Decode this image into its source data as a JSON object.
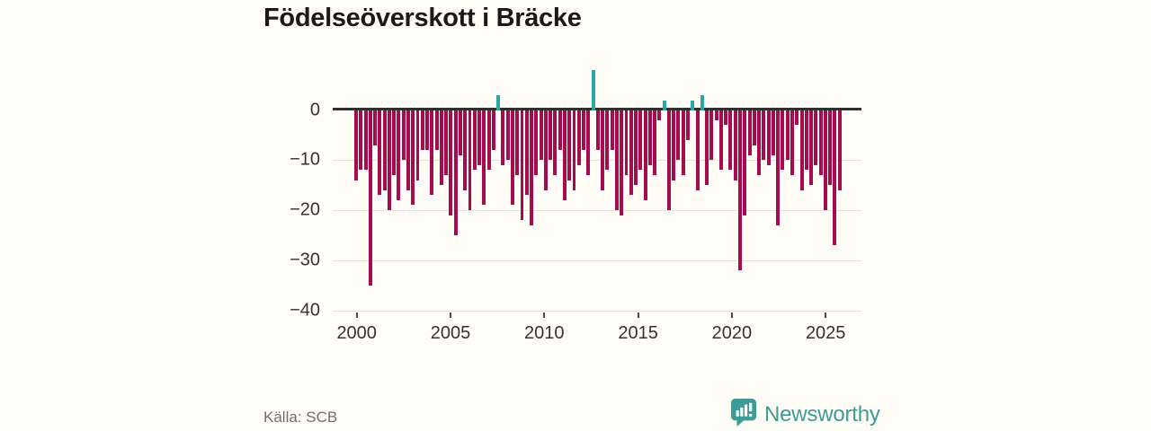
{
  "title": "Födelseöverskott i Bräcke",
  "source_label": "Källa: SCB",
  "brand": {
    "name": "Newsworthy",
    "color": "#3d9b95"
  },
  "chart_data": {
    "type": "bar",
    "title": "Födelseöverskott i Bräcke",
    "frequency": "quarterly",
    "start_period": "2000-Q1",
    "end_period": "2025-Q3",
    "x_tick_years": [
      2000,
      2005,
      2010,
      2015,
      2020,
      2025
    ],
    "x_tick_labels": [
      "2000",
      "2005",
      "2010",
      "2015",
      "2020",
      "2025"
    ],
    "y_ticks": [
      0,
      -10,
      -20,
      -30,
      -40
    ],
    "y_tick_labels": [
      "0",
      "−10",
      "−20",
      "−30",
      "−40"
    ],
    "ylim": [
      -42,
      11
    ],
    "grid": true,
    "legend": "none",
    "colors": {
      "negative": "#a50b4d",
      "positive": "#29a7a0"
    },
    "values": [
      -14,
      -12,
      -12,
      -35,
      -7,
      -17,
      -16,
      -20,
      -13,
      -18,
      -10,
      -16,
      -19,
      -14,
      -8,
      -8,
      -17,
      -8,
      -15,
      -13,
      -21,
      -25,
      -9,
      -16,
      -20,
      -12,
      -11,
      -19,
      -12,
      -8,
      3,
      -11,
      -10,
      -19,
      -13,
      -22,
      -17,
      -23,
      -13,
      -10,
      -16,
      -10,
      -13,
      -8,
      -18,
      -14,
      -16,
      -11,
      -8,
      -13,
      8,
      -8,
      -16,
      -12,
      -8,
      -20,
      -21,
      -13,
      -17,
      -15,
      -12,
      -18,
      -11,
      -13,
      -2,
      2,
      -20,
      -14,
      -10,
      -13,
      -6,
      2,
      -16,
      3,
      -15,
      -10,
      -2,
      -12,
      -3,
      -12,
      -14,
      -32,
      -21,
      -9,
      -7,
      -13,
      -10,
      -11,
      -9,
      -23,
      -12,
      -10,
      -13,
      -3,
      -16,
      -12,
      -15,
      -11,
      -13,
      -20,
      -15,
      -27,
      -16
    ]
  }
}
